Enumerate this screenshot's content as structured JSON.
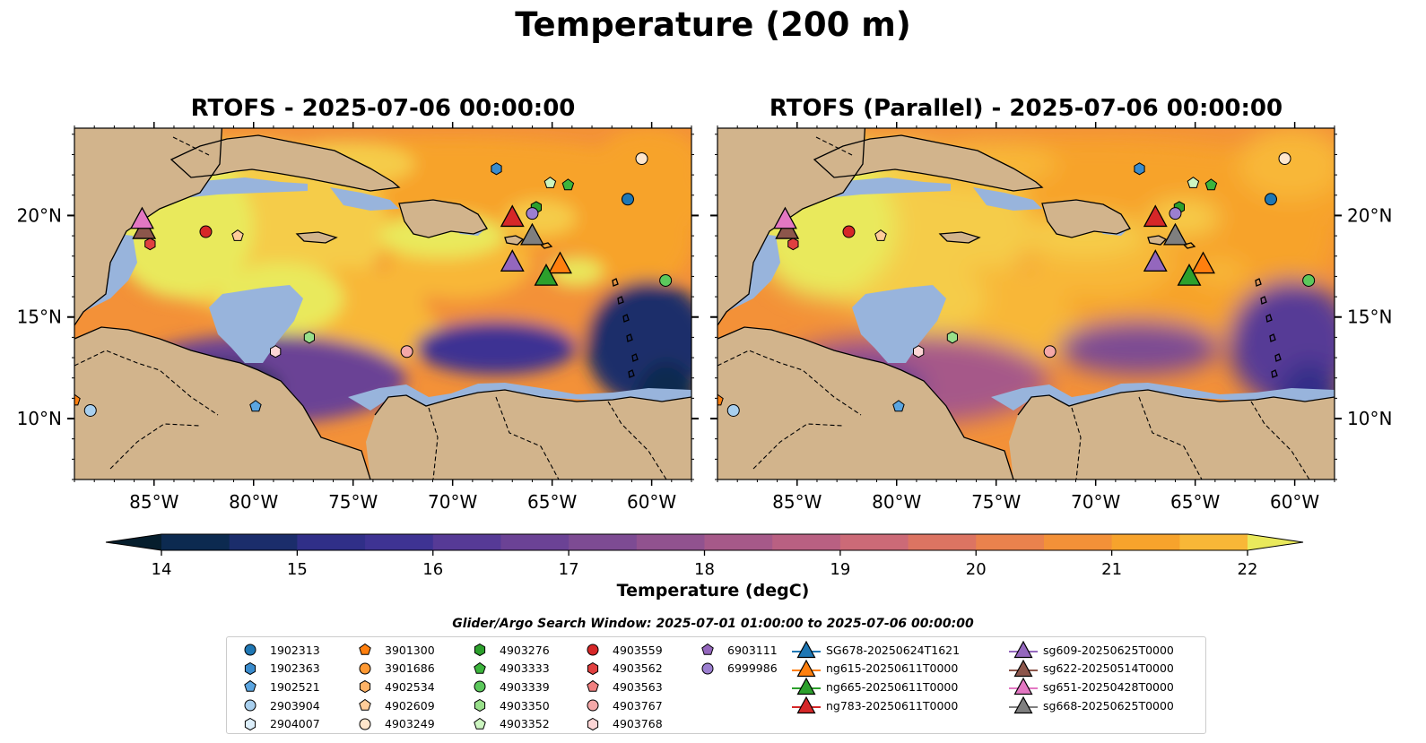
{
  "title": "Temperature (200 m)",
  "panels": [
    {
      "title": "RTOFS - 2025-07-06 00:00:00"
    },
    {
      "title": "RTOFS (Parallel) - 2025-07-06 00:00:00"
    }
  ],
  "colors": {
    "land": "#d2b48c",
    "shelf": "#98b4dc",
    "coast": "#000000",
    "background": "#ffffff"
  },
  "chart_data": {
    "type": "map-contour",
    "variable": "Temperature",
    "units": "degC",
    "colorbar": {
      "label": "Temperature (degC)",
      "ticks": [
        14,
        15,
        16,
        17,
        18,
        19,
        20,
        21,
        22
      ],
      "range": [
        14,
        22
      ],
      "extend": "both",
      "colormap": [
        "#061e2d",
        "#0c2a50",
        "#1b2d6b",
        "#302f88",
        "#3e3393",
        "#563a96",
        "#6b4295",
        "#7d4b93",
        "#91528f",
        "#a65989",
        "#b96082",
        "#cc6a77",
        "#dc7462",
        "#ea824d",
        "#f39138",
        "#f7a32c",
        "#f8b737",
        "#f5cc48",
        "#e9e95c"
      ]
    },
    "x_axis": {
      "ticks": [
        "85°W",
        "80°W",
        "75°W",
        "70°W",
        "65°W",
        "60°W"
      ],
      "lon_values": [
        -85,
        -80,
        -75,
        -70,
        -65,
        -60
      ],
      "lon_range": [
        -89,
        -58
      ]
    },
    "y_axis": {
      "ticks": [
        "20°N",
        "15°N",
        "10°N"
      ],
      "lat_values": [
        20,
        15,
        10
      ],
      "lat_range": [
        7,
        24.3
      ]
    },
    "search_window": "Glider/Argo Search Window: 2025-07-01 01:00:00 to 2025-07-06 00:00:00",
    "argo": [
      {
        "id": "1902313",
        "marker": "circle",
        "color": "#1f77b4",
        "lon": -61.2,
        "lat": 20.8
      },
      {
        "id": "1902363",
        "marker": "hexagon",
        "color": "#3a8ccd",
        "lon": -67.8,
        "lat": 22.3
      },
      {
        "id": "1902521",
        "marker": "pentagon",
        "color": "#5ba5e0",
        "lon": -79.9,
        "lat": 10.6
      },
      {
        "id": "2903904",
        "marker": "circle",
        "color": "#a8cfee",
        "lon": -88.2,
        "lat": 10.4
      },
      {
        "id": "2904007",
        "marker": "hexagon",
        "color": "#dceefa",
        "lon": null,
        "lat": null
      },
      {
        "id": "3901300",
        "marker": "pentagon",
        "color": "#ff7f0e",
        "lon": -89.0,
        "lat": 10.9
      },
      {
        "id": "3901686",
        "marker": "circle",
        "color": "#ff9933",
        "lon": null,
        "lat": null
      },
      {
        "id": "4902534",
        "marker": "hexagon",
        "color": "#ffb366",
        "lon": null,
        "lat": null
      },
      {
        "id": "4902609",
        "marker": "pentagon",
        "color": "#ffcc99",
        "lon": -80.8,
        "lat": 19.0
      },
      {
        "id": "4903249",
        "marker": "circle",
        "color": "#ffe6cc",
        "lon": -60.5,
        "lat": 22.8
      },
      {
        "id": "4903276",
        "marker": "hexagon",
        "color": "#2ca02c",
        "lon": -65.8,
        "lat": 20.4
      },
      {
        "id": "4903333",
        "marker": "pentagon",
        "color": "#3cb43c",
        "lon": -64.2,
        "lat": 21.5
      },
      {
        "id": "4903339",
        "marker": "circle",
        "color": "#5cc85c",
        "lon": -59.3,
        "lat": 16.8
      },
      {
        "id": "4903350",
        "marker": "hexagon",
        "color": "#98df8a",
        "lon": -77.2,
        "lat": 14.0
      },
      {
        "id": "4903352",
        "marker": "pentagon",
        "color": "#ccf5c0",
        "lon": -65.1,
        "lat": 21.6
      },
      {
        "id": "4903559",
        "marker": "circle",
        "color": "#d62728",
        "lon": -82.4,
        "lat": 19.2
      },
      {
        "id": "4903562",
        "marker": "hexagon",
        "color": "#e04040",
        "lon": -85.2,
        "lat": 18.6
      },
      {
        "id": "4903563",
        "marker": "pentagon",
        "color": "#f08080",
        "lon": null,
        "lat": null
      },
      {
        "id": "4903767",
        "marker": "circle",
        "color": "#f4a8a8",
        "lon": -72.3,
        "lat": 13.3
      },
      {
        "id": "4903768",
        "marker": "hexagon",
        "color": "#fcd5d5",
        "lon": -78.9,
        "lat": 13.3
      },
      {
        "id": "6903111",
        "marker": "pentagon",
        "color": "#9467bd",
        "lon": null,
        "lat": null
      },
      {
        "id": "6999986",
        "marker": "circle",
        "color": "#9c7fd0",
        "lon": -66.0,
        "lat": 20.1
      }
    ],
    "gliders": [
      {
        "id": "SG678-20250624T1621",
        "color": "#1f77b4",
        "lon": null,
        "lat": null
      },
      {
        "id": "ng615-20250611T0000",
        "color": "#ff7f0e",
        "lon": -64.6,
        "lat": 17.6
      },
      {
        "id": "ng665-20250611T0000",
        "color": "#2ca02c",
        "lon": -65.3,
        "lat": 17.0
      },
      {
        "id": "ng783-20250611T0000",
        "color": "#d62728",
        "lon": -67.0,
        "lat": 19.9
      },
      {
        "id": "sg609-20250625T0000",
        "color": "#9467bd",
        "lon": -67.0,
        "lat": 17.7
      },
      {
        "id": "sg622-20250514T0000",
        "color": "#8c564b",
        "lon": -85.5,
        "lat": 19.3
      },
      {
        "id": "sg651-20250428T0000",
        "color": "#e377c2",
        "lon": -85.6,
        "lat": 19.8
      },
      {
        "id": "sg668-20250625T0000",
        "color": "#7f7f7f",
        "lon": -66.0,
        "lat": 19.0
      }
    ]
  }
}
